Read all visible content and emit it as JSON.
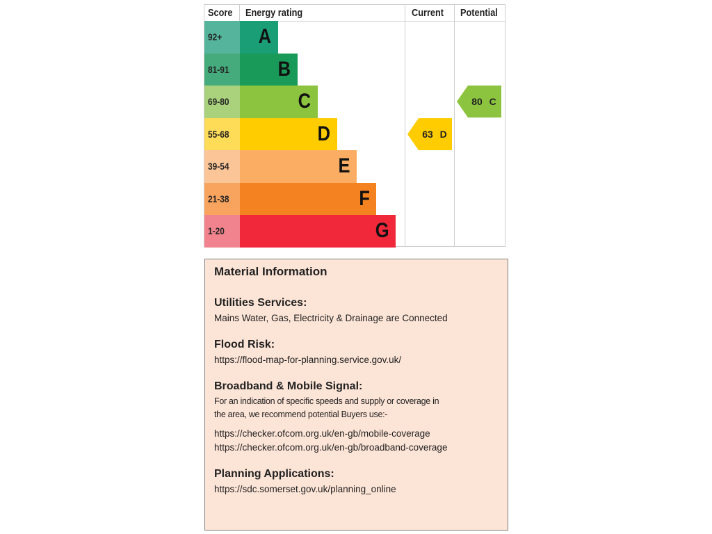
{
  "chart_data": {
    "type": "bar",
    "title": "",
    "headers": {
      "score": "Score",
      "rating": "Energy rating",
      "current": "Current",
      "potential": "Potential"
    },
    "categories": [
      "A",
      "B",
      "C",
      "D",
      "E",
      "F",
      "G"
    ],
    "score_ranges": [
      "92+",
      "81-91",
      "69-80",
      "55-68",
      "39-54",
      "21-38",
      "1-20"
    ],
    "colors": {
      "bar": [
        "#1a9e75",
        "#199a58",
        "#8cc43f",
        "#ffcc00",
        "#fbae63",
        "#f58220",
        "#f0283a"
      ],
      "score": [
        "#55b59c",
        "#45aa7c",
        "#aad27c",
        "#ffdc58",
        "#fbc597",
        "#f8a35e",
        "#f0838d"
      ]
    },
    "current": {
      "value": 63,
      "band": "D",
      "label": "63  D",
      "color": "#ffcc00"
    },
    "potential": {
      "value": 80,
      "band": "C",
      "label": "80  C",
      "color": "#8cc43f"
    }
  },
  "info": {
    "title": "Material Information",
    "sections": [
      {
        "heading": "Utilities Services:",
        "lines": [
          "Mains Water, Gas, Electricity & Drainage are Connected"
        ]
      },
      {
        "heading": "Flood Risk:",
        "lines": [
          "https://flood-map-for-planning.service.gov.uk/"
        ]
      },
      {
        "heading": "Broadband & Mobile Signal:",
        "lines": [
          "For an indication of specific speeds and supply or coverage in",
          "the area, we recommend potential Buyers use:-"
        ],
        "links": [
          "https://checker.ofcom.org.uk/en-gb/mobile-coverage",
          "https://checker.ofcom.org.uk/en-gb/broadband-coverage"
        ]
      },
      {
        "heading": "Planning Applications:",
        "lines": [
          "https://sdc.somerset.gov.uk/planning_online"
        ]
      }
    ]
  }
}
